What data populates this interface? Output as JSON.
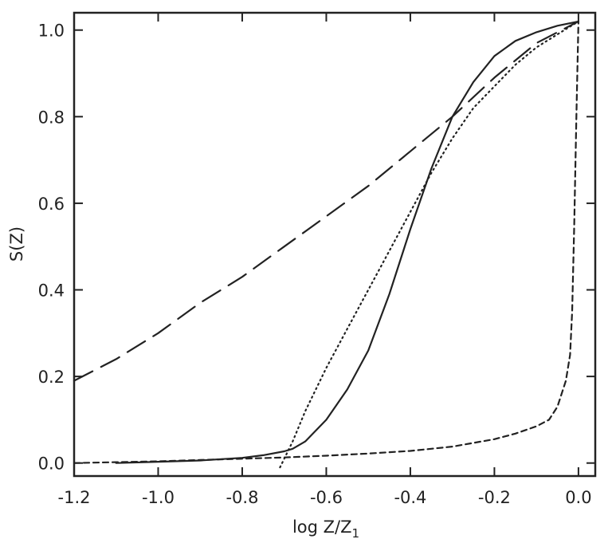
{
  "chart_data": {
    "type": "line",
    "title": "",
    "xlabel": "log Z/Z",
    "xlabel_sub": "1",
    "ylabel": "S(Z)",
    "xlim": [
      -1.2,
      0.04
    ],
    "ylim": [
      -0.03,
      1.04
    ],
    "grid": false,
    "x_ticks": [
      -1.2,
      -1.0,
      -0.8,
      -0.6,
      -0.4,
      -0.2,
      0.0
    ],
    "x_tick_labels": [
      "-1.2",
      "-1.0",
      "-0.8",
      "-0.6",
      "-0.4",
      "-0.2",
      "0.0"
    ],
    "y_ticks": [
      0.0,
      0.2,
      0.4,
      0.6,
      0.8,
      1.0
    ],
    "y_tick_labels": [
      "0.0",
      "0.2",
      "0.4",
      "0.6",
      "0.8",
      "1.0"
    ],
    "series": [
      {
        "style": "solid",
        "x": [
          -1.1,
          -1.0,
          -0.9,
          -0.8,
          -0.75,
          -0.7,
          -0.68,
          -0.65,
          -0.6,
          -0.55,
          -0.5,
          -0.45,
          -0.4,
          -0.35,
          -0.3,
          -0.25,
          -0.2,
          -0.15,
          -0.1,
          -0.05,
          0.0
        ],
        "y": [
          0.0,
          0.003,
          0.006,
          0.012,
          0.018,
          0.027,
          0.033,
          0.05,
          0.1,
          0.17,
          0.26,
          0.39,
          0.54,
          0.68,
          0.8,
          0.88,
          0.94,
          0.975,
          0.995,
          1.01,
          1.02
        ]
      },
      {
        "style": "long-dash",
        "x": [
          -1.2,
          -1.1,
          -1.0,
          -0.9,
          -0.8,
          -0.7,
          -0.6,
          -0.5,
          -0.4,
          -0.3,
          -0.2,
          -0.1,
          0.0
        ],
        "y": [
          0.19,
          0.24,
          0.3,
          0.37,
          0.43,
          0.5,
          0.57,
          0.64,
          0.72,
          0.8,
          0.89,
          0.97,
          1.02
        ]
      },
      {
        "style": "dotted",
        "x": [
          -0.71,
          -0.68,
          -0.65,
          -0.6,
          -0.55,
          -0.5,
          -0.45,
          -0.4,
          -0.35,
          -0.3,
          -0.25,
          -0.2,
          -0.15,
          -0.1,
          -0.05,
          0.0
        ],
        "y": [
          -0.01,
          0.05,
          0.12,
          0.22,
          0.31,
          0.4,
          0.49,
          0.58,
          0.67,
          0.75,
          0.82,
          0.87,
          0.92,
          0.96,
          0.99,
          1.02
        ]
      },
      {
        "style": "short-dash",
        "x": [
          -1.2,
          -1.1,
          -1.0,
          -0.9,
          -0.8,
          -0.7,
          -0.6,
          -0.5,
          -0.4,
          -0.3,
          -0.2,
          -0.15,
          -0.1,
          -0.07,
          -0.05,
          -0.03,
          -0.02,
          -0.015,
          -0.01,
          -0.005,
          0.0
        ],
        "y": [
          0.0,
          0.002,
          0.004,
          0.007,
          0.01,
          0.013,
          0.017,
          0.022,
          0.028,
          0.038,
          0.055,
          0.068,
          0.085,
          0.1,
          0.13,
          0.19,
          0.25,
          0.35,
          0.55,
          0.8,
          1.02
        ]
      }
    ]
  }
}
